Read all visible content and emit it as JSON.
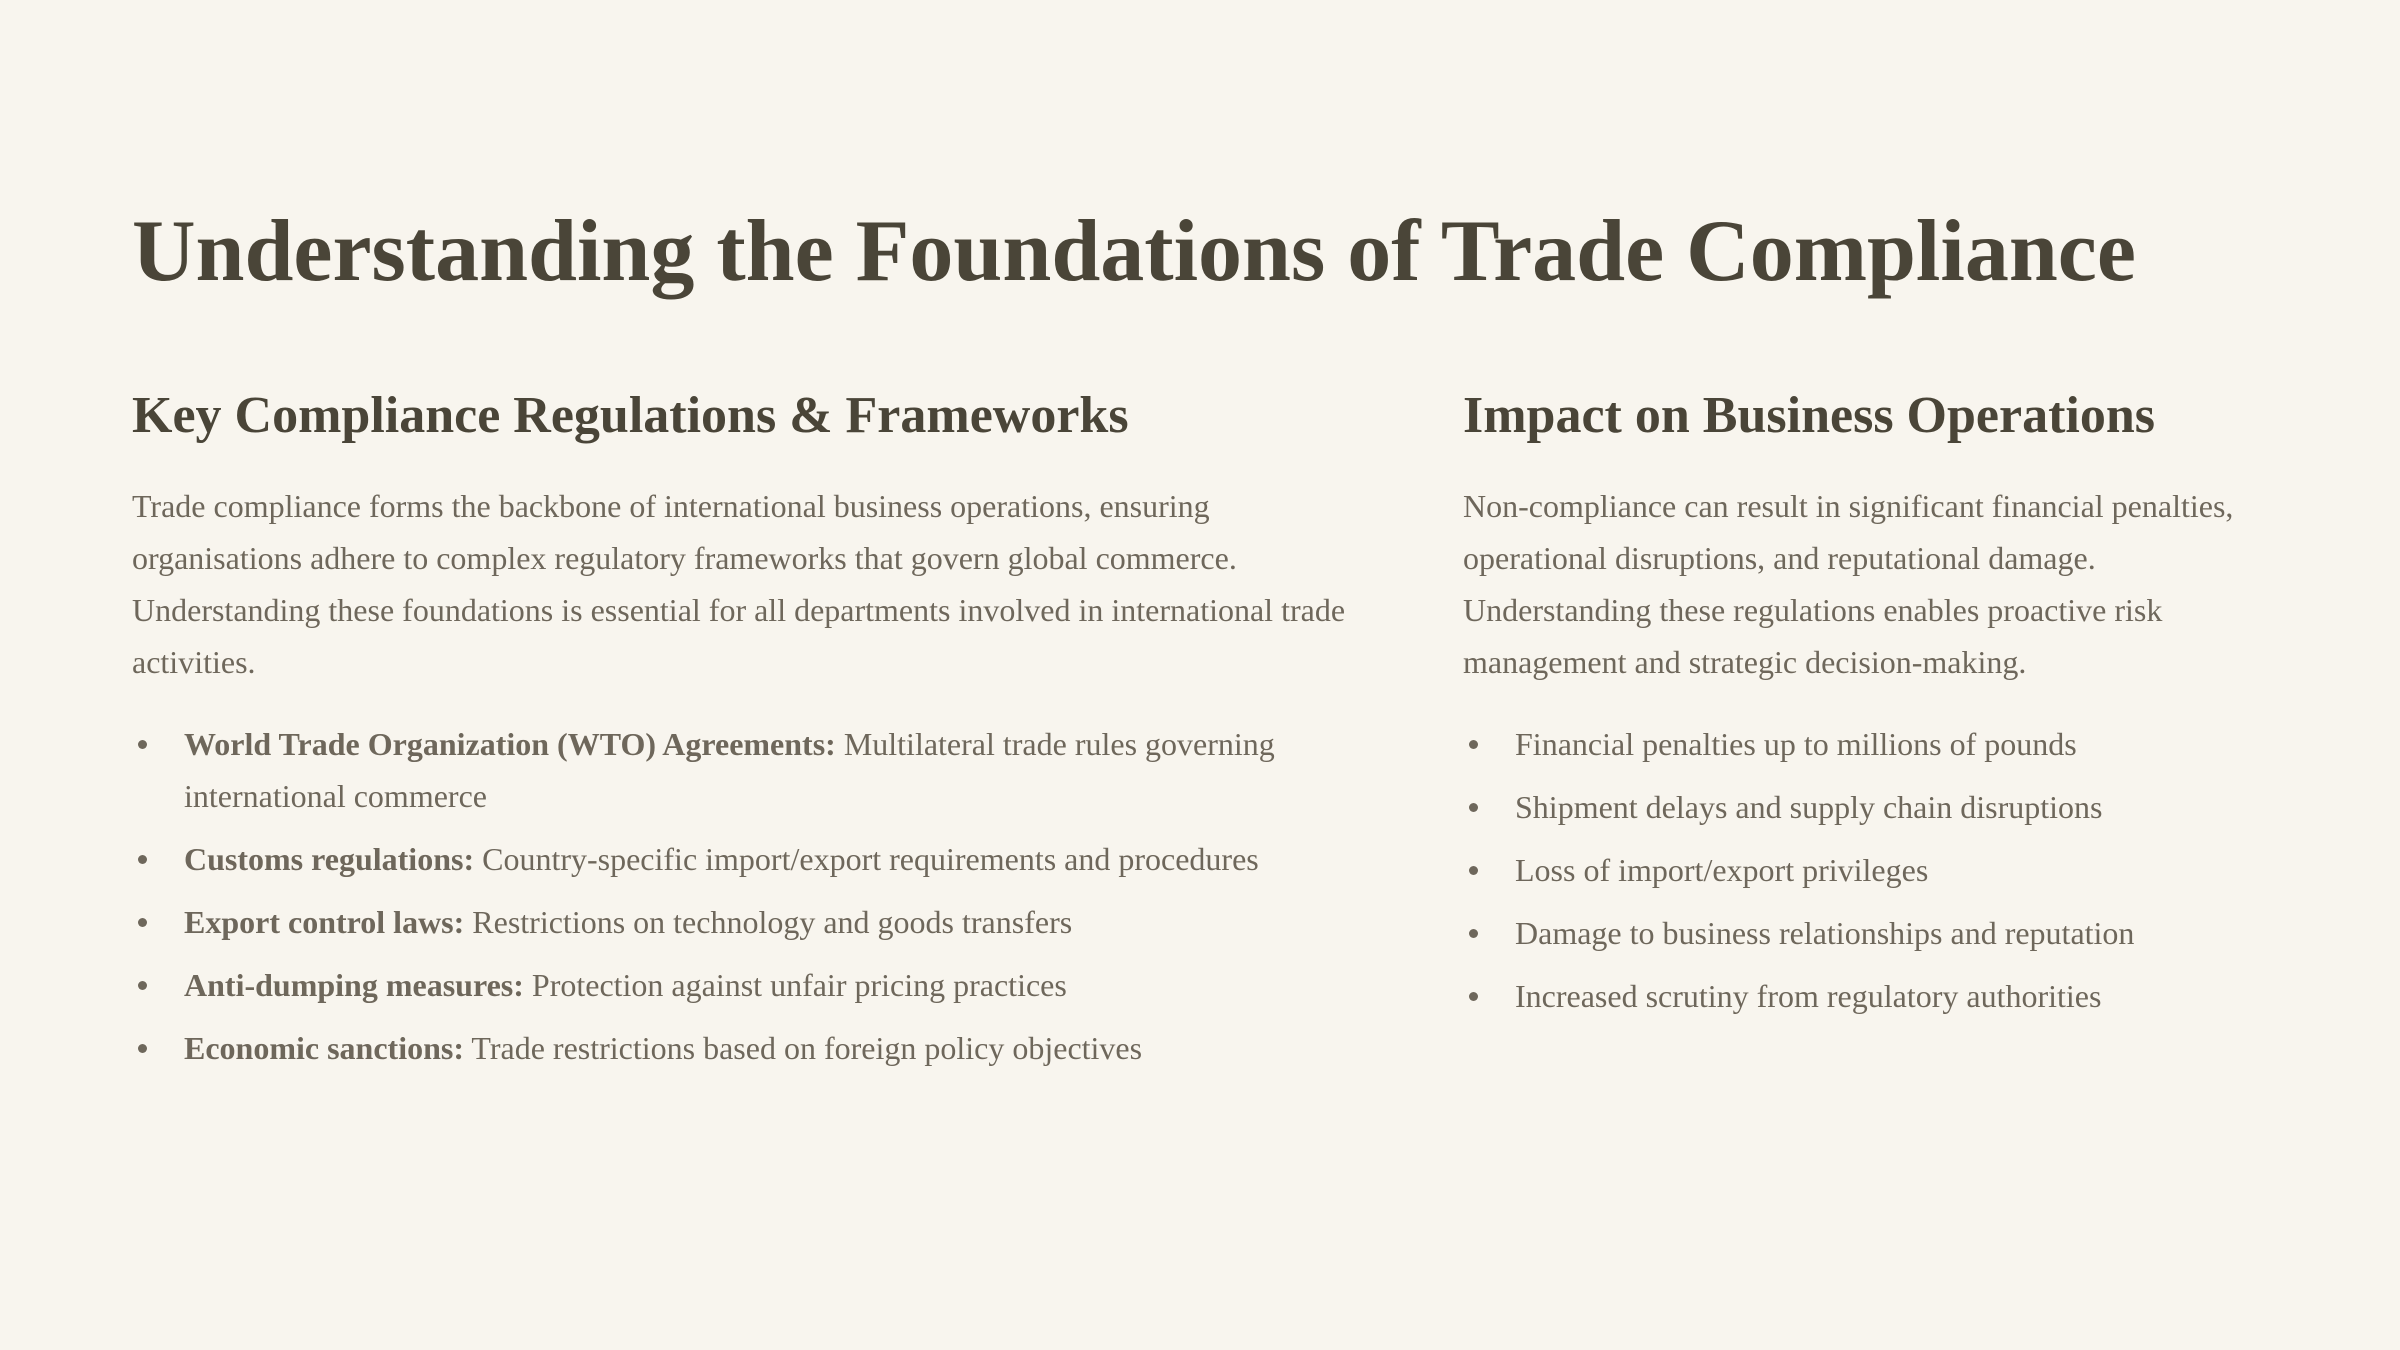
{
  "title": "Understanding the Foundations of Trade Compliance",
  "left": {
    "heading": "Key Compliance Regulations & Frameworks",
    "paragraph": "Trade compliance forms the backbone of international business operations, ensuring organisations adhere to complex regulatory frameworks that govern global commerce. Understanding these foundations is essential for all departments involved in international trade activities.",
    "items": [
      {
        "label": "World Trade Organization (WTO) Agreements:",
        "text": "Multilateral trade rules governing international commerce"
      },
      {
        "label": "Customs regulations:",
        "text": "Country-specific import/export requirements and procedures"
      },
      {
        "label": "Export control laws:",
        "text": "Restrictions on technology and goods transfers"
      },
      {
        "label": "Anti-dumping measures:",
        "text": "Protection against unfair pricing practices"
      },
      {
        "label": "Economic sanctions:",
        "text": "Trade restrictions based on foreign policy objectives"
      }
    ]
  },
  "right": {
    "heading": "Impact on Business Operations",
    "paragraph": "Non-compliance can result in significant financial penalties, operational disruptions, and reputational damage. Understanding these regulations enables proactive risk management and strategic decision-making.",
    "items": [
      "Financial penalties up to millions of pounds",
      "Shipment delays and supply chain disruptions",
      "Loss of import/export privileges",
      "Damage to business relationships and reputation",
      "Increased scrutiny from regulatory authorities"
    ]
  }
}
